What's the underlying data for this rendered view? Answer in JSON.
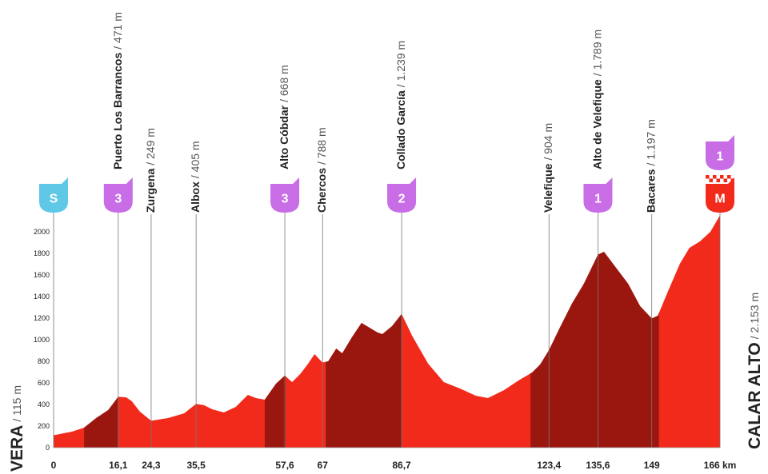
{
  "chart_data": {
    "type": "area",
    "x": [
      0,
      4.6,
      7.6,
      10.6,
      13.6,
      16.1,
      18.1,
      19.5,
      21.5,
      24.3,
      28.5,
      32.5,
      35.5,
      37.5,
      39.5,
      42.4,
      45.4,
      48.4,
      50.4,
      52.6,
      55.4,
      57.6,
      59.4,
      61.4,
      63.4,
      65,
      67,
      68.4,
      70.4,
      71.9,
      74.3,
      76.7,
      78.7,
      80.7,
      81.9,
      84.3,
      86.7,
      89.3,
      93.3,
      97.2,
      101.2,
      105.2,
      108.2,
      112.2,
      115.8,
      119.2,
      121.2,
      123.4,
      126.1,
      129.1,
      132.1,
      135.6,
      137.1,
      140.1,
      143.1,
      146.1,
      149,
      150.5,
      153,
      156,
      158.4,
      161,
      163.6,
      166
    ],
    "values": [
      115,
      148,
      185,
      274,
      348,
      471,
      466,
      430,
      333,
      249,
      274,
      318,
      405,
      393,
      356,
      326,
      378,
      489,
      459,
      444,
      593,
      668,
      607,
      681,
      778,
      867,
      788,
      800,
      918,
      874,
      1022,
      1156,
      1111,
      1067,
      1052,
      1126,
      1239,
      1037,
      778,
      607,
      548,
      481,
      459,
      533,
      622,
      696,
      770,
      904,
      1111,
      1333,
      1519,
      1789,
      1815,
      1667,
      1519,
      1311,
      1197,
      1222,
      1444,
      1704,
      1852,
      1911,
      2000,
      2153
    ],
    "color": "#f22a1c",
    "dark_color": "#9a1710",
    "dark_sections": [
      {
        "start": 7.6,
        "end": 16.1
      },
      {
        "start": 52.6,
        "end": 57.8
      },
      {
        "start": 67.8,
        "end": 86.7
      },
      {
        "start": 118.8,
        "end": 150.8
      }
    ],
    "xlim": [
      0,
      166
    ],
    "ylim": [
      0,
      2200
    ],
    "xticks": [
      0,
      {
        "value": 16.1,
        "label": "16,1"
      },
      {
        "value": 24.3,
        "label": "24,3"
      },
      {
        "value": 35.5,
        "label": "35,5"
      },
      {
        "value": 57.6,
        "label": "57,6"
      },
      67,
      {
        "value": 86.7,
        "label": "86,7"
      },
      {
        "value": 123.4,
        "label": "123,4"
      },
      {
        "value": 135.6,
        "label": "135,6"
      },
      149,
      {
        "value": 166,
        "label": "166 km"
      }
    ],
    "yticks": [
      0,
      200,
      400,
      600,
      800,
      1000,
      1200,
      1400,
      1600,
      1800,
      2000
    ],
    "start": {
      "name": "VERA",
      "altitude": "/ 115 m"
    },
    "finish": {
      "name": "CALAR ALTO",
      "altitude": "/ 2.153 m"
    },
    "waypoints": [
      {
        "km": 0,
        "badges": [
          {
            "text": "S",
            "color": "#5ec8e6"
          }
        ]
      },
      {
        "km": 16.1,
        "name": "Puerto Los Barrancos",
        "altitude": "/ 471 m",
        "badges": [
          {
            "text": "3",
            "color": "#c86de6"
          }
        ]
      },
      {
        "km": 24.3,
        "name": "Zurgena",
        "altitude": "/ 249 m"
      },
      {
        "km": 35.5,
        "name": "Albox",
        "altitude": "/ 405 m"
      },
      {
        "km": 57.6,
        "name": "Alto Cóbdar",
        "altitude": "/ 668 m",
        "badges": [
          {
            "text": "3",
            "color": "#c86de6"
          }
        ]
      },
      {
        "km": 67,
        "name": "Chercos",
        "altitude": "/ 788 m"
      },
      {
        "km": 86.7,
        "name": "Collado García",
        "altitude": "/ 1.239 m",
        "badges": [
          {
            "text": "2",
            "color": "#c86de6"
          }
        ]
      },
      {
        "km": 123.4,
        "name": "Velefique",
        "altitude": "/ 904 m"
      },
      {
        "km": 135.6,
        "name": "Alto de Velefique",
        "altitude": "/ 1.789 m",
        "badges": [
          {
            "text": "1",
            "color": "#c86de6"
          }
        ]
      },
      {
        "km": 149,
        "name": "Bacares",
        "altitude": "/ 1.197 m"
      },
      {
        "km": 166,
        "badges": [
          {
            "text": "M",
            "color": "#f22a1c"
          },
          {
            "text": "1",
            "color": "#c86de6"
          }
        ]
      }
    ]
  }
}
